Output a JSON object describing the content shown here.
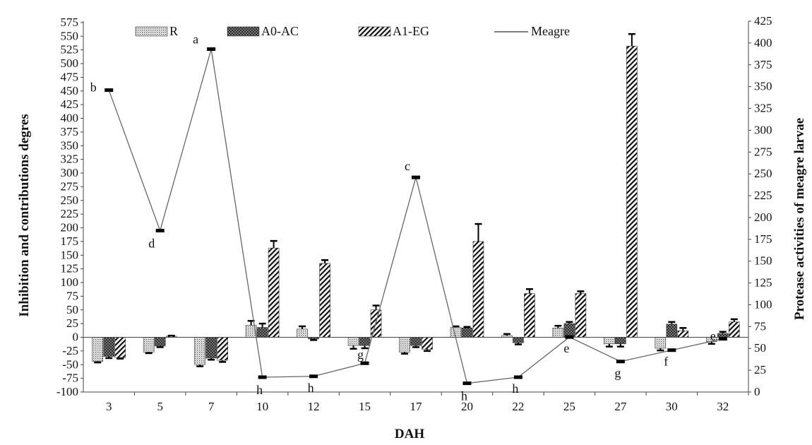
{
  "chart_data": {
    "type": "bar",
    "xlabel": "DAH",
    "ylabel": "Inhibition  and contributions  degres",
    "y2label": "Protease activities of meagre larvae",
    "categories": [
      "3",
      "5",
      "7",
      "10",
      "12",
      "15",
      "17",
      "20",
      "22",
      "25",
      "27",
      "30",
      "32"
    ],
    "ylim": [
      -100,
      575
    ],
    "yticks": [
      "575",
      "550",
      "525",
      "500",
      "475",
      "450",
      "425",
      "400",
      "375",
      "350",
      "325",
      "300",
      "275",
      "250",
      "225",
      "200",
      "175",
      "150",
      "125",
      "100",
      "75",
      "50",
      "25",
      "0",
      "-25",
      "-50",
      "-75",
      "-100"
    ],
    "y2lim": [
      0,
      425
    ],
    "y2ticks": [
      "425",
      "400",
      "375",
      "350",
      "325",
      "300",
      "275",
      "250",
      "225",
      "200",
      "175",
      "150",
      "125",
      "100",
      "75",
      "50",
      "25",
      "0"
    ],
    "legend_placement": "top",
    "grid": false,
    "series": [
      {
        "name": "R",
        "pattern": "dots",
        "values": [
          -44,
          -27,
          -50,
          22,
          15,
          -15,
          -27,
          18,
          3,
          17,
          -12,
          -20,
          -8
        ],
        "errors": [
          2,
          2,
          3,
          8,
          5,
          6,
          3,
          2,
          3,
          4,
          5,
          4,
          4
        ]
      },
      {
        "name": "A0-AC",
        "pattern": "checker",
        "values": [
          -35,
          -16,
          -38,
          18,
          -3,
          -15,
          -15,
          17,
          -10,
          25,
          -12,
          24,
          7
        ],
        "errors": [
          3,
          2,
          3,
          7,
          2,
          5,
          3,
          2,
          3,
          3,
          5,
          4,
          3
        ]
      },
      {
        "name": "A1-EG",
        "pattern": "diagonal",
        "values": [
          -37,
          2,
          -42,
          163,
          135,
          50,
          -22,
          175,
          80,
          80,
          532,
          12,
          28
        ],
        "errors": [
          2,
          1,
          3,
          13,
          6,
          8,
          3,
          32,
          8,
          4,
          22,
          5,
          5
        ]
      },
      {
        "name": "Meagre",
        "type": "line",
        "axis": "secondary",
        "values": [
          346,
          185,
          393,
          17,
          18,
          33,
          246,
          10,
          17,
          63,
          35,
          48,
          61
        ],
        "labels": [
          "b",
          "d",
          "a",
          "h",
          "h",
          "g",
          "c",
          "h",
          "h",
          "e",
          "g",
          "f",
          "e"
        ]
      }
    ]
  }
}
